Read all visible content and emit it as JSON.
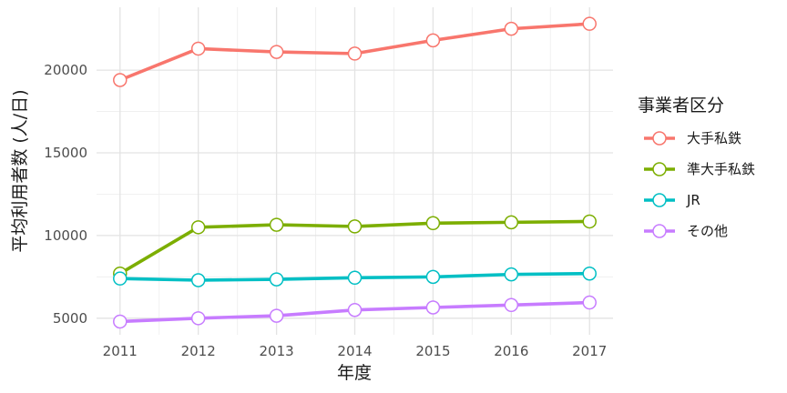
{
  "chart_data": {
    "type": "line",
    "xlabel": "年度",
    "ylabel": "平均利用者数 (人/日)",
    "x": [
      2011,
      2012,
      2013,
      2014,
      2015,
      2016,
      2017
    ],
    "xlim": [
      2010.7,
      2017.3
    ],
    "ylim": [
      4000,
      23800
    ],
    "yticks": [
      5000,
      10000,
      15000,
      20000
    ],
    "grid": true,
    "legend": {
      "title": "事業者区分",
      "position": "right"
    },
    "series": [
      {
        "name": "大手私鉄",
        "color": "#F8766D",
        "values": [
          19400,
          21300,
          21100,
          21000,
          21800,
          22500,
          22800
        ]
      },
      {
        "name": "準大手私鉄",
        "color": "#7CAE00",
        "values": [
          7700,
          10500,
          10650,
          10550,
          10750,
          10800,
          10850
        ]
      },
      {
        "name": "JR",
        "color": "#00BFC4",
        "values": [
          7400,
          7300,
          7350,
          7450,
          7500,
          7650,
          7700
        ]
      },
      {
        "name": "その他",
        "color": "#C77CFF",
        "values": [
          4800,
          5000,
          5150,
          5500,
          5650,
          5800,
          5950
        ]
      }
    ]
  }
}
